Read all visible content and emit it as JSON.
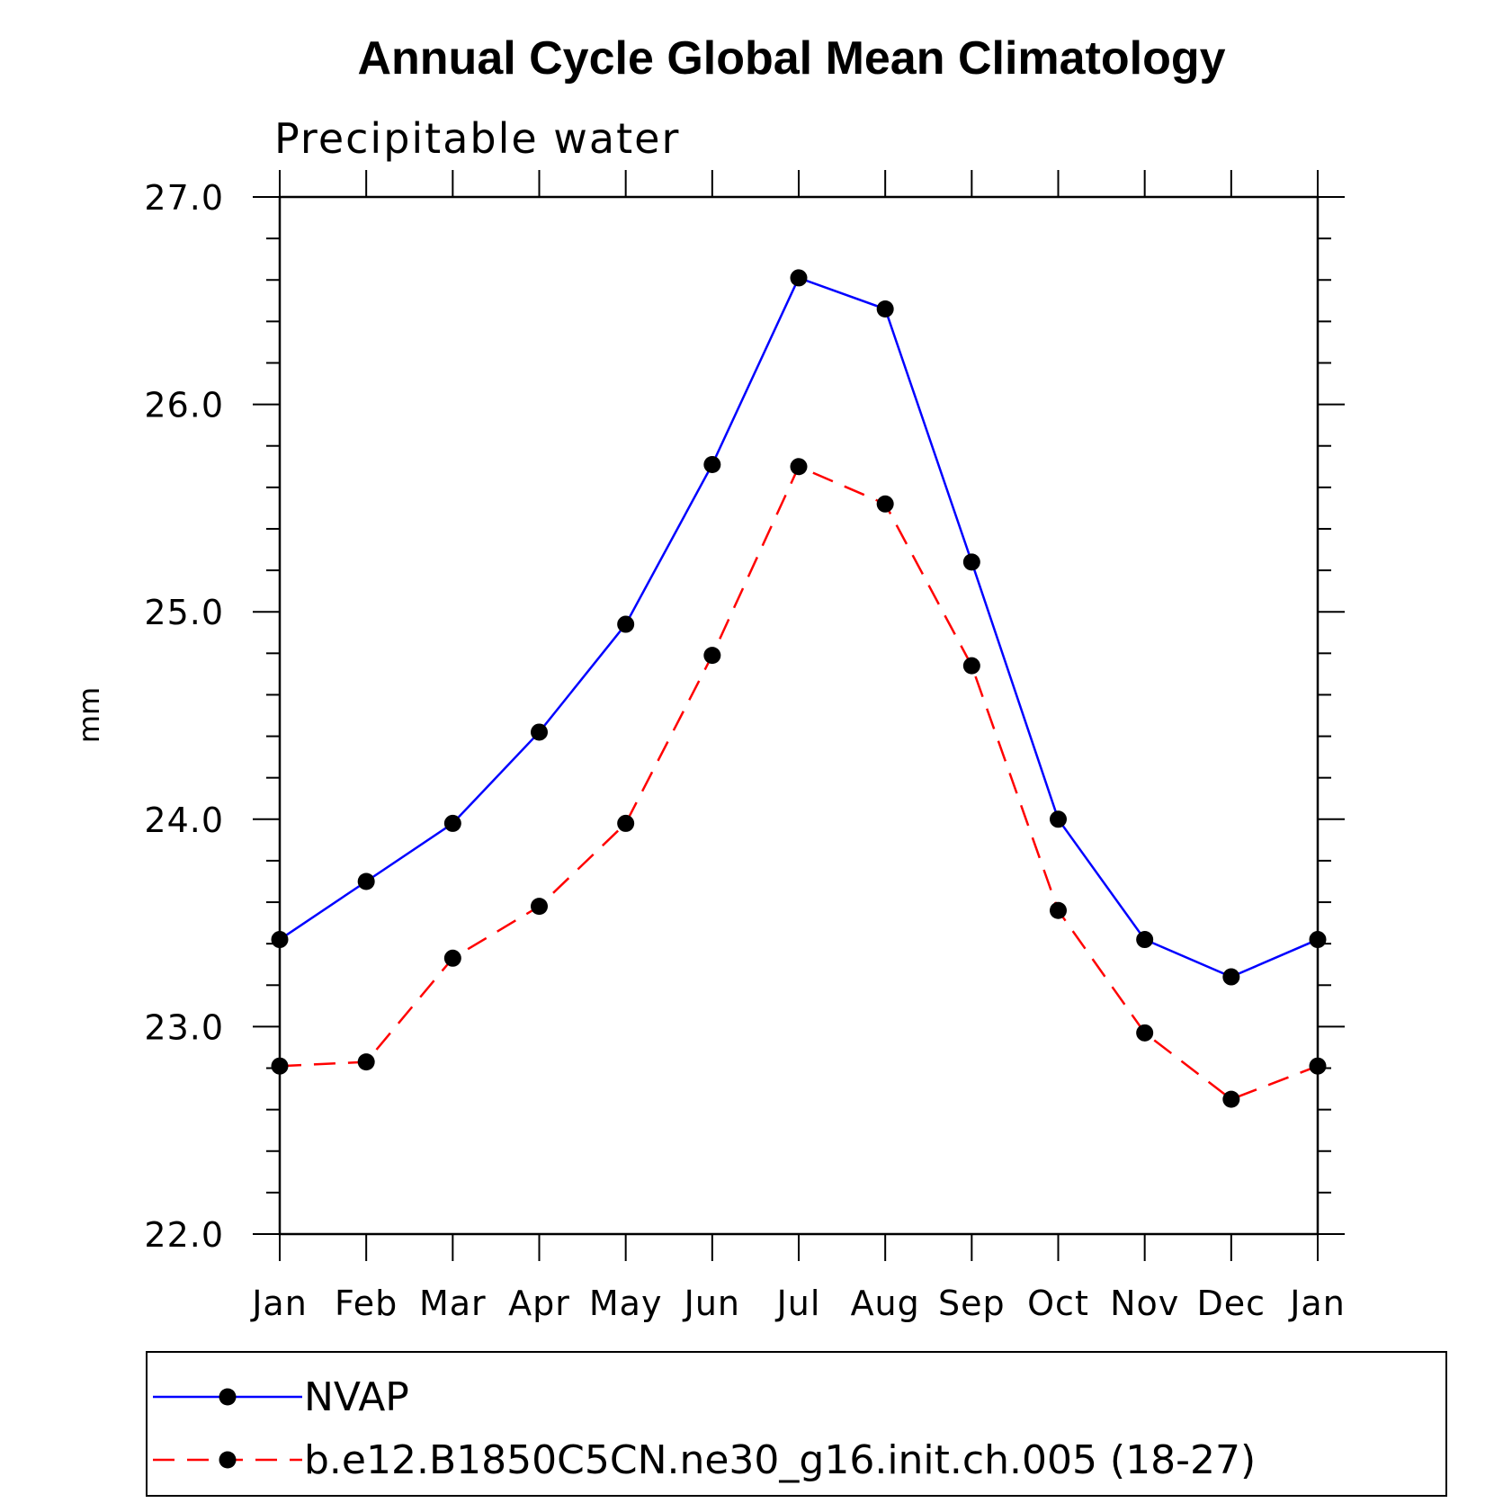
{
  "chart_data": {
    "type": "line",
    "title": "Annual Cycle Global Mean Climatology",
    "subtitle": "Precipitable water",
    "xlabel": "",
    "ylabel": "mm",
    "categories": [
      "Jan",
      "Feb",
      "Mar",
      "Apr",
      "May",
      "Jun",
      "Jul",
      "Aug",
      "Sep",
      "Oct",
      "Nov",
      "Dec",
      "Jan"
    ],
    "ylim": [
      22.0,
      27.0
    ],
    "yticks": [
      "22.0",
      "23.0",
      "24.0",
      "25.0",
      "26.0",
      "27.0"
    ],
    "grid": false,
    "legend_position": "bottom",
    "series": [
      {
        "name": "NVAP",
        "color": "#0000ff",
        "line_style": "solid",
        "marker": "filled-circle",
        "values": [
          23.42,
          23.7,
          23.98,
          24.42,
          24.94,
          25.71,
          26.61,
          26.46,
          25.24,
          24.0,
          23.42,
          23.24,
          23.42
        ]
      },
      {
        "name": "b.e12.B1850C5CN.ne30_g16.init.ch.005 (18-27)",
        "color": "#ff0000",
        "line_style": "dashed",
        "marker": "filled-circle",
        "values": [
          22.81,
          22.83,
          23.33,
          23.58,
          23.98,
          24.79,
          25.7,
          25.52,
          24.74,
          23.56,
          22.97,
          22.65,
          22.81
        ]
      }
    ]
  }
}
